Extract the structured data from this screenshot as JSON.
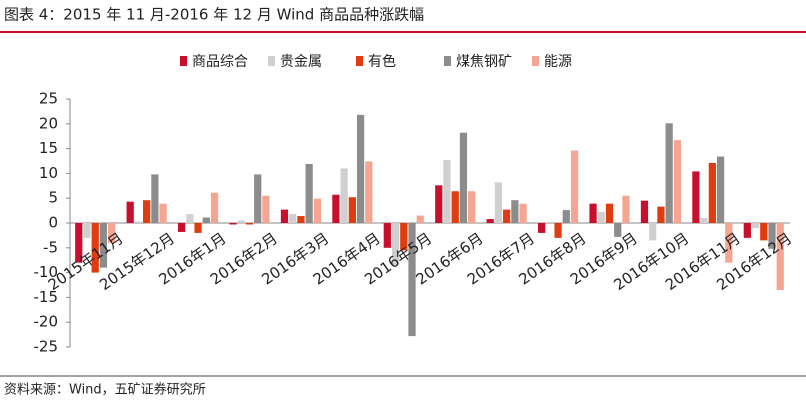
{
  "chart_data": {
    "type": "bar",
    "title": "图表 4：2015 年 11 月-2016 年 12 月 Wind 商品品种涨跌幅",
    "source": "资料来源：Wind，五矿证券研究所",
    "categories": [
      "2015年11月",
      "2015年12月",
      "2016年1月",
      "2016年2月",
      "2016年3月",
      "2016年4月",
      "2016年5月",
      "2016年6月",
      "2016年7月",
      "2016年8月",
      "2016年9月",
      "2016年10月",
      "2016年11月",
      "2016年12月"
    ],
    "series": [
      {
        "name": "商品综合",
        "color": "#c8102e",
        "values": [
          -8,
          4.3,
          -1.8,
          -0.3,
          2.7,
          5.7,
          -5,
          7.6,
          0.8,
          -2,
          3.9,
          4.5,
          10.4,
          -3
        ]
      },
      {
        "name": "贵金属",
        "color": "#d0d0d0",
        "values": [
          -3,
          0.3,
          1.8,
          0.5,
          1.8,
          11,
          -8.5,
          12.7,
          8.2,
          0.2,
          2.2,
          -3.5,
          1,
          -1
        ]
      },
      {
        "name": "有色",
        "color": "#e03c10",
        "values": [
          -10,
          4.6,
          -2,
          -0.3,
          1.4,
          5.2,
          -5.5,
          6.4,
          2.7,
          -3,
          3.9,
          3.3,
          12.1,
          -3.5
        ]
      },
      {
        "name": "煤焦钢矿",
        "color": "#8c8c8c",
        "values": [
          -9,
          9.8,
          1.1,
          9.8,
          11.9,
          21.8,
          -22.8,
          18.2,
          4.6,
          2.6,
          -2.8,
          20.1,
          13.4,
          -5.2
        ]
      },
      {
        "name": "能源",
        "color": "#f5a592",
        "values": [
          -4,
          3.9,
          6.1,
          5.5,
          4.9,
          12.4,
          1.5,
          6.4,
          3.9,
          14.6,
          5.5,
          16.7,
          -8,
          -13.5
        ]
      }
    ],
    "ylim": [
      -25,
      25
    ],
    "yticks": [
      -25,
      -20,
      -15,
      -10,
      -5,
      0,
      5,
      10,
      15,
      20,
      25
    ],
    "grid": false,
    "legend": "top"
  }
}
